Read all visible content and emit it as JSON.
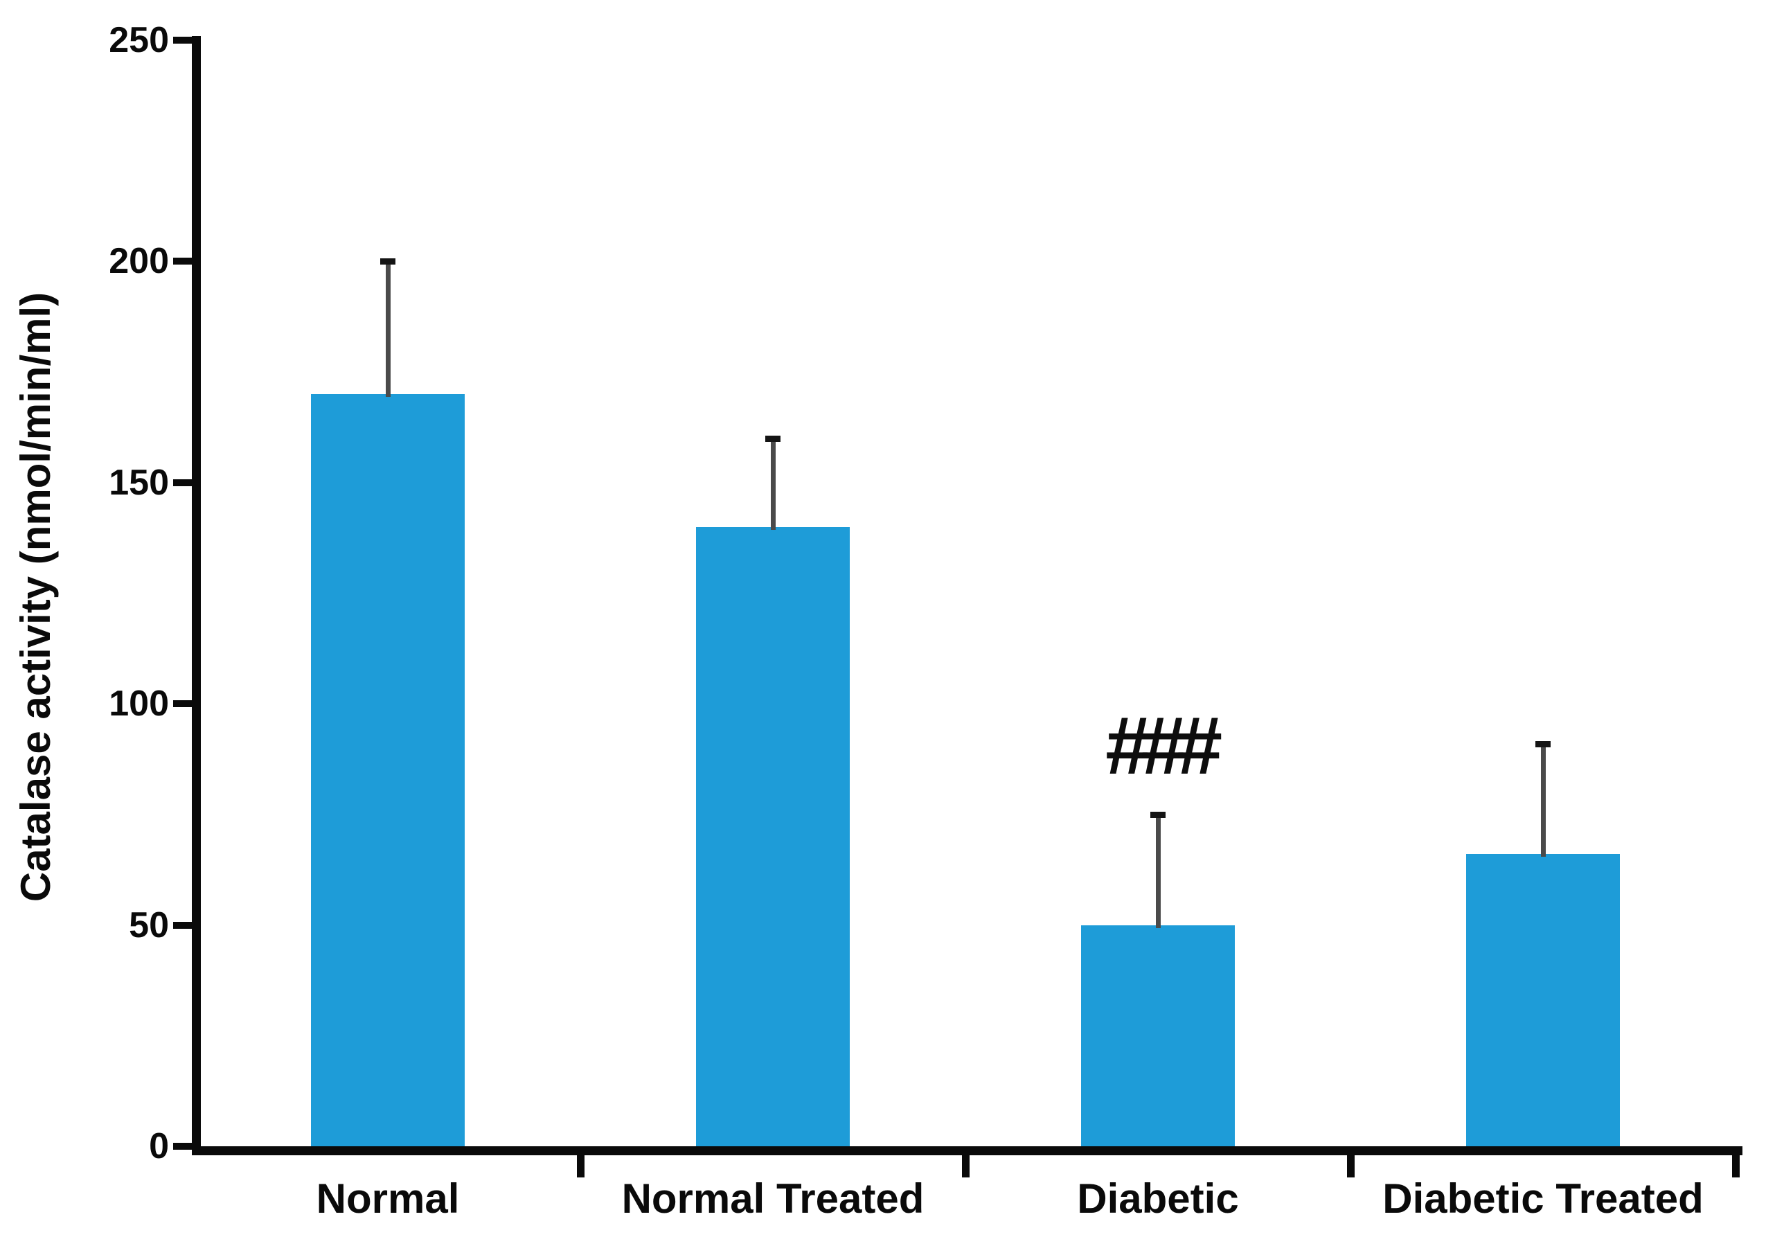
{
  "chart_data": {
    "type": "bar",
    "title": "",
    "xlabel": "",
    "ylabel": "Catalase activity (nmol/min/ml)",
    "categories": [
      "Normal",
      "Normal Treated",
      "Diabetic",
      "Diabetic Treated"
    ],
    "values": [
      170,
      140,
      50,
      66
    ],
    "error_up": [
      30,
      20,
      25,
      25
    ],
    "annotations": [
      "",
      "",
      "###",
      ""
    ],
    "yticks": [
      0,
      50,
      100,
      150,
      200,
      250
    ],
    "ytick_labels": [
      "0",
      "50",
      "100",
      "150",
      "200",
      "250"
    ],
    "ylim": [
      0,
      250
    ],
    "grid": false,
    "legend": null,
    "bar_color": "#1E9CD8",
    "error_line_color": "#4a4a4a",
    "error_cap_color": "#141414",
    "axis_color": "#0a0a0a"
  }
}
